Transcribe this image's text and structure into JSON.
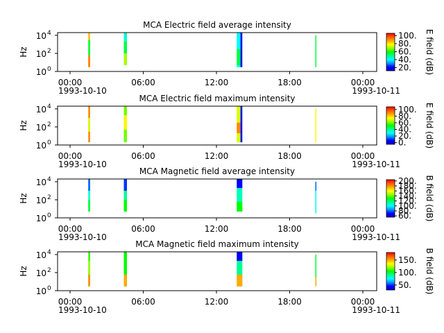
{
  "colors": {
    "colormap": [
      "#0000c8",
      "#0000ff",
      "#0096ff",
      "#00ffff",
      "#00ff96",
      "#00ff00",
      "#96ff00",
      "#ffff00",
      "#ffaa00",
      "#ff5a00",
      "#ff0000"
    ],
    "axis": "#000000",
    "background": "#ffffff"
  },
  "chart_data": [
    {
      "type": "heatmap",
      "title": "MCA  Electric field average intensity",
      "ylabel": "Hz",
      "y_scale": "log",
      "ylim": [
        1,
        20000
      ],
      "y_ticks": [
        {
          "base": "10",
          "exp": "0"
        },
        {
          "base": "10",
          "exp": "2"
        },
        {
          "base": "10",
          "exp": "4"
        }
      ],
      "x_ticks": [
        "00:00",
        "06:00",
        "12:00",
        "18:00",
        "00:00"
      ],
      "x_start_label": "1993-10-10",
      "x_end_label": "1993-10-11",
      "colorbar": {
        "label": "E field (dB)",
        "ticks": [
          "20.",
          "40.",
          "60.",
          "80.",
          "100."
        ],
        "tick_values": [
          20,
          40,
          60,
          80,
          100
        ],
        "range": [
          12,
          106
        ]
      },
      "x_range_hours": [
        0,
        26
      ],
      "bands": [
        {
          "t_start": 2.5,
          "t_end": 2.65,
          "cells": [
            {
              "f_low": 3,
              "f_high": 20000,
              "value": 85
            },
            {
              "f_low": 3,
              "f_high": 60,
              "value": 92
            },
            {
              "f_low": 60,
              "f_high": 3000,
              "value": 55
            }
          ]
        },
        {
          "t_start": 5.4,
          "t_end": 5.65,
          "cells": [
            {
              "f_low": 5,
              "f_high": 20000,
              "value": 45
            },
            {
              "f_low": 5,
              "f_high": 100,
              "value": 70
            },
            {
              "f_low": 100,
              "f_high": 2000,
              "value": 55
            }
          ]
        },
        {
          "t_start": 14.6,
          "t_end": 14.9,
          "cells": [
            {
              "f_low": 3,
              "f_high": 20000,
              "value": 40
            },
            {
              "f_low": 5,
              "f_high": 300,
              "value": 55
            }
          ]
        },
        {
          "t_start": 14.9,
          "t_end": 15.05,
          "cells": [
            {
              "f_low": 3,
              "f_high": 20000,
              "value": 18
            }
          ]
        },
        {
          "t_start": 21.0,
          "t_end": 21.07,
          "cells": [
            {
              "f_low": 3,
              "f_high": 10000,
              "value": 55
            }
          ]
        }
      ]
    },
    {
      "type": "heatmap",
      "title": "MCA  Electric field maximum intensity",
      "ylabel": "Hz",
      "y_scale": "log",
      "ylim": [
        1,
        20000
      ],
      "y_ticks": [
        {
          "base": "10",
          "exp": "0"
        },
        {
          "base": "10",
          "exp": "2"
        },
        {
          "base": "10",
          "exp": "4"
        }
      ],
      "x_ticks": [
        "00:00",
        "06:00",
        "12:00",
        "18:00",
        "00:00"
      ],
      "x_start_label": "1993-10-10",
      "x_end_label": "1993-10-11",
      "colorbar": {
        "label": "E field (dB)",
        "ticks": [
          "0.",
          "20.",
          "40.",
          "60.",
          "80.",
          "100."
        ],
        "tick_values": [
          0,
          20,
          40,
          60,
          80,
          100
        ],
        "range": [
          -5,
          108
        ]
      },
      "x_range_hours": [
        0,
        26
      ],
      "bands": [
        {
          "t_start": 2.5,
          "t_end": 2.65,
          "cells": [
            {
              "f_low": 2,
              "f_high": 20000,
              "value": 90
            },
            {
              "f_low": 30,
              "f_high": 1000,
              "value": 70
            }
          ]
        },
        {
          "t_start": 5.4,
          "t_end": 5.65,
          "cells": [
            {
              "f_low": 2,
              "f_high": 20000,
              "value": 60
            },
            {
              "f_low": 50,
              "f_high": 2000,
              "value": 75
            }
          ]
        },
        {
          "t_start": 14.6,
          "t_end": 14.9,
          "cells": [
            {
              "f_low": 2,
              "f_high": 20000,
              "value": 70
            },
            {
              "f_low": 20,
              "f_high": 300,
              "value": 90
            }
          ]
        },
        {
          "t_start": 14.9,
          "t_end": 15.05,
          "cells": [
            {
              "f_low": 2,
              "f_high": 20000,
              "value": 5
            }
          ]
        },
        {
          "t_start": 21.0,
          "t_end": 21.07,
          "cells": [
            {
              "f_low": 2,
              "f_high": 10000,
              "value": 75
            }
          ]
        }
      ]
    },
    {
      "type": "heatmap",
      "title": "MCA  Magnetic field average intensity",
      "ylabel": "Hz",
      "y_scale": "log",
      "ylim": [
        1,
        20000
      ],
      "y_ticks": [
        {
          "base": "10",
          "exp": "0"
        },
        {
          "base": "10",
          "exp": "2"
        },
        {
          "base": "10",
          "exp": "4"
        }
      ],
      "x_ticks": [
        "00:00",
        "06:00",
        "12:00",
        "18:00",
        "00:00"
      ],
      "x_start_label": "1993-10-10",
      "x_end_label": "1993-10-11",
      "colorbar": {
        "label": "B field (dB)",
        "ticks": [
          "60.",
          "80.",
          "100.",
          "120.",
          "140.",
          "160.",
          "180.",
          "200."
        ],
        "tick_values": [
          60,
          80,
          100,
          120,
          140,
          160,
          180,
          200
        ],
        "range": [
          55,
          205
        ]
      },
      "x_range_hours": [
        0,
        26
      ],
      "bands": [
        {
          "t_start": 2.5,
          "t_end": 2.65,
          "cells": [
            {
              "f_low": 5,
              "f_high": 20000,
              "value": 105
            },
            {
              "f_low": 1000,
              "f_high": 20000,
              "value": 80
            },
            {
              "f_low": 5,
              "f_high": 100,
              "value": 125
            }
          ]
        },
        {
          "t_start": 5.4,
          "t_end": 5.65,
          "cells": [
            {
              "f_low": 5,
              "f_high": 20000,
              "value": 115
            },
            {
              "f_low": 1000,
              "f_high": 20000,
              "value": 75
            },
            {
              "f_low": 5,
              "f_high": 100,
              "value": 130
            }
          ]
        },
        {
          "t_start": 14.6,
          "t_end": 15.05,
          "cells": [
            {
              "f_low": 5,
              "f_high": 20000,
              "value": 110
            },
            {
              "f_low": 2000,
              "f_high": 20000,
              "value": 70
            },
            {
              "f_low": 5,
              "f_high": 60,
              "value": 130
            }
          ]
        },
        {
          "t_start": 21.0,
          "t_end": 21.07,
          "cells": [
            {
              "f_low": 3,
              "f_high": 10000,
              "value": 100
            },
            {
              "f_low": 1000,
              "f_high": 10000,
              "value": 80
            }
          ]
        }
      ]
    },
    {
      "type": "heatmap",
      "title": "MCA  Magnetic field maximum intensity",
      "ylabel": "Hz",
      "y_scale": "log",
      "ylim": [
        1,
        20000
      ],
      "y_ticks": [
        {
          "base": "10",
          "exp": "0"
        },
        {
          "base": "10",
          "exp": "2"
        },
        {
          "base": "10",
          "exp": "4"
        }
      ],
      "x_ticks": [
        "00:00",
        "06:00",
        "12:00",
        "18:00",
        "00:00"
      ],
      "x_start_label": "1993-10-10",
      "x_end_label": "1993-10-11",
      "colorbar": {
        "label": "B field (dB)",
        "ticks": [
          "50.",
          "100.",
          "150."
        ],
        "tick_values": [
          50,
          100,
          150
        ],
        "range": [
          30,
          180
        ]
      },
      "x_range_hours": [
        0,
        26
      ],
      "bands": [
        {
          "t_start": 2.5,
          "t_end": 2.65,
          "cells": [
            {
              "f_low": 3,
              "f_high": 20000,
              "value": 110
            },
            {
              "f_low": 3,
              "f_high": 60,
              "value": 155
            },
            {
              "f_low": 60,
              "f_high": 2000,
              "value": 120
            }
          ]
        },
        {
          "t_start": 5.4,
          "t_end": 5.65,
          "cells": [
            {
              "f_low": 3,
              "f_high": 20000,
              "value": 105
            },
            {
              "f_low": 3,
              "f_high": 60,
              "value": 150
            }
          ]
        },
        {
          "t_start": 14.6,
          "t_end": 15.05,
          "cells": [
            {
              "f_low": 3,
              "f_high": 20000,
              "value": 90
            },
            {
              "f_low": 2000,
              "f_high": 20000,
              "value": 45
            },
            {
              "f_low": 3,
              "f_high": 60,
              "value": 150
            }
          ]
        },
        {
          "t_start": 21.0,
          "t_end": 21.07,
          "cells": [
            {
              "f_low": 3,
              "f_high": 10000,
              "value": 100
            },
            {
              "f_low": 3,
              "f_high": 30,
              "value": 150
            }
          ]
        }
      ]
    }
  ]
}
